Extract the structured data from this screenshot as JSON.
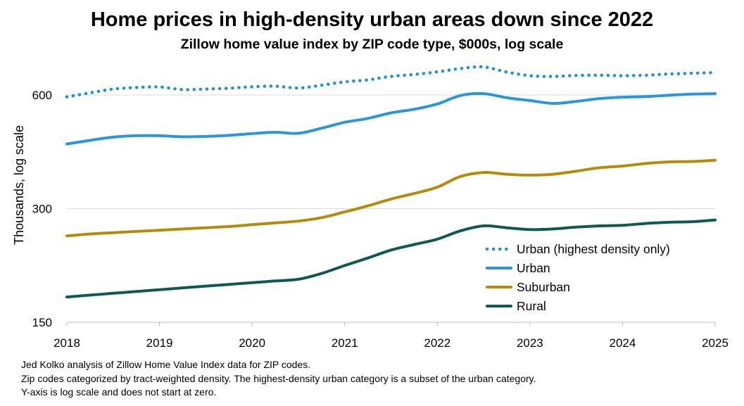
{
  "chart_data": {
    "type": "line",
    "title": "Home prices in high-density urban areas down since 2022",
    "subtitle": "Zillow home value index by ZIP code type, $000s, log scale",
    "ylabel": "Thousands, log scale",
    "xlabel": "",
    "y_scale": "log",
    "ylim": [
      150,
      700
    ],
    "y_ticks": [
      150,
      300,
      600
    ],
    "xlim": [
      2018,
      2025
    ],
    "x_ticks": [
      2018,
      2019,
      2020,
      2021,
      2022,
      2023,
      2024,
      2025
    ],
    "grid": "horizontal",
    "legend_position": "lower-right",
    "series": [
      {
        "name": "Urban (highest density only)",
        "color": "#1E8FD8",
        "style": "dotted",
        "x": [
          2018,
          2018.25,
          2018.5,
          2018.75,
          2019,
          2019.25,
          2019.5,
          2019.75,
          2020,
          2020.25,
          2020.5,
          2020.75,
          2021,
          2021.25,
          2021.5,
          2021.75,
          2022,
          2022.25,
          2022.5,
          2022.75,
          2023,
          2023.25,
          2023.5,
          2023.75,
          2024,
          2024.25,
          2024.5,
          2024.75,
          2025
        ],
        "y": [
          593,
          608,
          622,
          628,
          630,
          620,
          622,
          625,
          631,
          633,
          626,
          637,
          650,
          658,
          672,
          680,
          691,
          705,
          712,
          690,
          675,
          672,
          676,
          677,
          675,
          677,
          682,
          685,
          688
        ]
      },
      {
        "name": "Urban",
        "color": "#2A96DB",
        "style": "solid",
        "x": [
          2018,
          2018.25,
          2018.5,
          2018.75,
          2019,
          2019.25,
          2019.5,
          2019.75,
          2020,
          2020.25,
          2020.5,
          2020.75,
          2021,
          2021.25,
          2021.5,
          2021.75,
          2022,
          2022.25,
          2022.5,
          2022.75,
          2023,
          2023.25,
          2023.5,
          2023.75,
          2024,
          2024.25,
          2024.5,
          2024.75,
          2025
        ],
        "y": [
          445,
          455,
          464,
          468,
          468,
          465,
          466,
          469,
          474,
          478,
          475,
          490,
          508,
          520,
          538,
          550,
          568,
          598,
          605,
          590,
          580,
          570,
          577,
          587,
          592,
          594,
          599,
          603,
          605
        ]
      },
      {
        "name": "Suburban",
        "color": "#B58B0A",
        "style": "solid",
        "x": [
          2018,
          2018.25,
          2018.5,
          2018.75,
          2019,
          2019.25,
          2019.5,
          2019.75,
          2020,
          2020.25,
          2020.5,
          2020.75,
          2021,
          2021.25,
          2021.5,
          2021.75,
          2022,
          2022.25,
          2022.5,
          2022.75,
          2023,
          2023.25,
          2023.5,
          2023.75,
          2024,
          2024.25,
          2024.5,
          2024.75,
          2025
        ],
        "y": [
          254,
          257,
          259,
          261,
          263,
          265,
          267,
          269,
          272,
          275,
          278,
          284,
          294,
          305,
          318,
          329,
          342,
          365,
          374,
          370,
          368,
          370,
          377,
          385,
          389,
          395,
          399,
          400,
          403
        ]
      },
      {
        "name": "Rural",
        "color": "#0F5A50",
        "style": "solid",
        "x": [
          2018,
          2018.25,
          2018.5,
          2018.75,
          2019,
          2019.25,
          2019.5,
          2019.75,
          2020,
          2020.25,
          2020.5,
          2020.75,
          2021,
          2021.25,
          2021.5,
          2021.75,
          2022,
          2022.25,
          2022.5,
          2022.75,
          2023,
          2023.25,
          2023.5,
          2023.75,
          2024,
          2024.25,
          2024.5,
          2024.75,
          2025
        ],
        "y": [
          175,
          177,
          179,
          181,
          183,
          185,
          187,
          189,
          191,
          193,
          195,
          202,
          212,
          222,
          233,
          241,
          249,
          262,
          270,
          267,
          264,
          265,
          268,
          270,
          271,
          274,
          276,
          277,
          280
        ]
      }
    ]
  },
  "notes": [
    "Jed Kolko analysis of Zillow Home Value Index data for ZIP codes.",
    "Zip codes categorized by tract-weighted density. The highest-density urban category is a subset of the urban category.",
    "Y-axis is log scale and does not start at zero."
  ]
}
